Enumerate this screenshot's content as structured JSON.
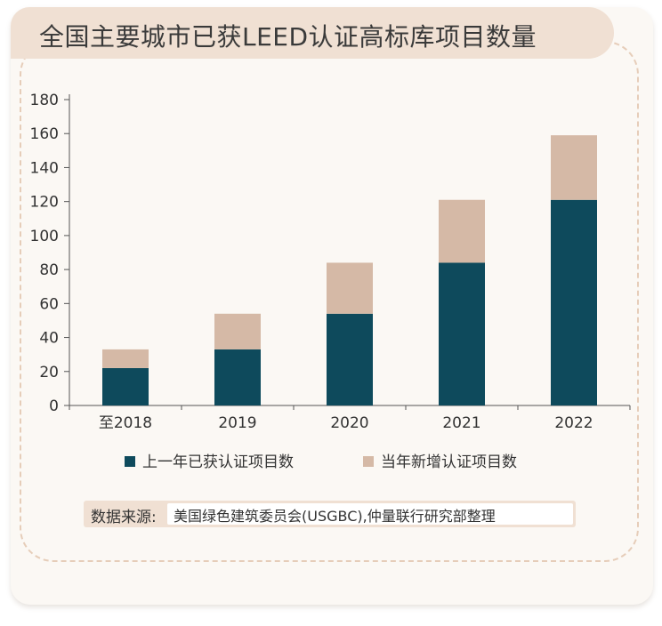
{
  "title": "全国主要城市已获LEED认证高标库项目数量",
  "source": {
    "label": "数据来源:",
    "value": "美国绿色建筑委员会(USGBC),仲量联行研究部整理"
  },
  "colors": {
    "prior": "#0e4a5c",
    "new": "#d5b9a6",
    "title_bg": "#f0e0d3",
    "dashed": "#e6cdb9",
    "card_bg": "#fbf8f4"
  },
  "chart_data": {
    "type": "bar",
    "stacked": true,
    "categories": [
      "至2018",
      "2019",
      "2020",
      "2021",
      "2022"
    ],
    "series": [
      {
        "name": "上一年已获认证项目数",
        "color": "#0e4a5c",
        "values": [
          22,
          33,
          54,
          84,
          121
        ]
      },
      {
        "name": "当年新增认证项目数",
        "color": "#d5b9a6",
        "values": [
          11,
          21,
          30,
          37,
          38
        ]
      }
    ],
    "ylim": [
      0,
      180
    ],
    "yticks": [
      0,
      20,
      40,
      60,
      80,
      100,
      120,
      140,
      160,
      180
    ],
    "grid": false,
    "legend_position": "bottom"
  }
}
